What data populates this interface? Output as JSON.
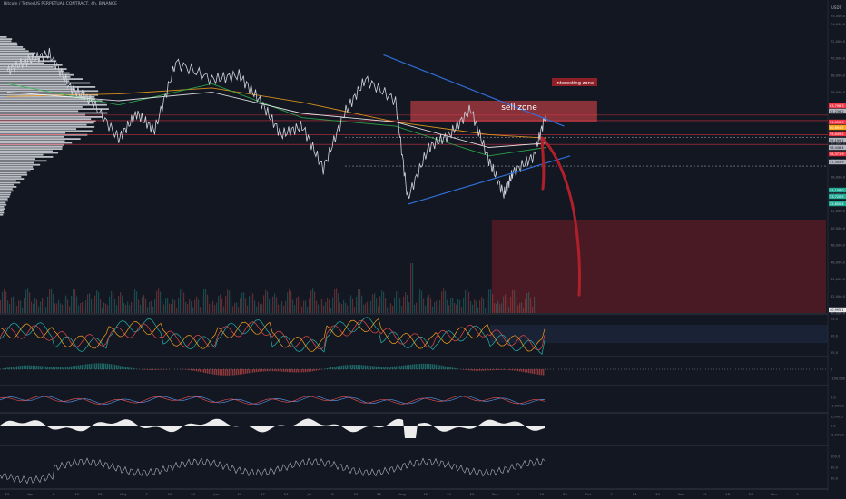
{
  "header": {
    "symbol": "Bitcoin / TetherUS PERPETUAL CONTRACT, 4h, BINANCE"
  },
  "currency_label": "USDT",
  "chart_data": [
    {
      "type": "line",
      "title": "Bitcoin / TetherUS PERPETUAL CONTRACT, 4h, BINANCE",
      "x_axis_ticks": [
        "25",
        "Apr",
        "8",
        "15",
        "22",
        "May",
        "7",
        "13",
        "20",
        "Jun",
        "10",
        "17",
        "24",
        "Jul",
        "8",
        "15",
        "22",
        "Aug",
        "12",
        "19",
        "26",
        "Sep",
        "9",
        "16",
        "23",
        "Oct",
        "7",
        "14",
        "21",
        "Nov",
        "11",
        "18",
        "25",
        "Dec",
        "9"
      ],
      "y_axis_ticks": [
        "75,000.0",
        "74,000.0",
        "72,000.0",
        "70,000.0",
        "68,000.0",
        "66,000.0",
        "64,000.0",
        "62,000.0",
        "60,000.0",
        "58,000.0",
        "56,000.0",
        "54,000.0",
        "52,000.0",
        "50,000.0",
        "48,000.0",
        "46,000.0",
        "44,000.0",
        "42,000.0",
        "40,000.0"
      ],
      "ylim": [
        40000,
        76000
      ],
      "price_series": {
        "name": "BTCUSDT",
        "color": "#d1d4dc",
        "x": [
          "2024-03-25",
          "2024-04-01",
          "2024-04-08",
          "2024-04-15",
          "2024-04-22",
          "2024-05-01",
          "2024-05-07",
          "2024-05-13",
          "2024-05-20",
          "2024-06-01",
          "2024-06-10",
          "2024-06-17",
          "2024-06-24",
          "2024-07-01",
          "2024-07-08",
          "2024-07-15",
          "2024-07-22",
          "2024-08-01",
          "2024-08-05",
          "2024-08-12",
          "2024-08-19",
          "2024-08-26",
          "2024-09-01",
          "2024-09-06",
          "2024-09-09",
          "2024-09-16",
          "2024-09-20"
        ],
        "y": [
          68500,
          69800,
          70500,
          66500,
          65000,
          60500,
          63500,
          61500,
          69500,
          67500,
          68000,
          65000,
          61000,
          62000,
          57000,
          63500,
          67500,
          65000,
          53500,
          59500,
          61000,
          64000,
          58000,
          54000,
          56500,
          58500,
          63500
        ]
      },
      "moving_averages": [
        {
          "color": "#f7a21b",
          "x": [
            "2024-03-25",
            "2024-05-01",
            "2024-06-01",
            "2024-07-01",
            "2024-08-01",
            "2024-09-01",
            "2024-09-20"
          ],
          "y": [
            65500,
            65800,
            66500,
            64800,
            62500,
            61000,
            60600
          ]
        },
        {
          "color": "#2db84d",
          "x": [
            "2024-03-25",
            "2024-05-01",
            "2024-06-01",
            "2024-07-01",
            "2024-08-01",
            "2024-09-01",
            "2024-09-20"
          ],
          "y": [
            67000,
            64500,
            67000,
            63000,
            62000,
            58500,
            59500
          ]
        },
        {
          "color": "#ffffff",
          "x": [
            "2024-03-25",
            "2024-05-01",
            "2024-06-01",
            "2024-07-01",
            "2024-08-01",
            "2024-09-01",
            "2024-09-20"
          ],
          "y": [
            66000,
            65000,
            66000,
            63500,
            62500,
            59500,
            60000
          ]
        }
      ],
      "trendlines": [
        {
          "name": "",
          "color": "#2f6fd8",
          "from": {
            "x": "2024-07-28",
            "y": 70400
          },
          "to": {
            "x": "2024-09-26",
            "y": 62000
          }
        },
        {
          "name": "",
          "color": "#2f6fd8",
          "from": {
            "x": "2024-08-05",
            "y": 52800
          },
          "to": {
            "x": "2024-09-28",
            "y": 58500
          }
        }
      ],
      "zones": [
        {
          "label": "sell zone",
          "color": "#e8494d",
          "x_start": "2024-08-06",
          "x_end": "2024-10-07",
          "y_low": 62500,
          "y_high": 65000
        },
        {
          "label": "",
          "color": "#8f2027",
          "x_start": "2024-09-02",
          "x_end": "2024-12-31",
          "y_low": 40000,
          "y_high": 51000
        }
      ],
      "annotations": [
        {
          "text": "Interesting zone",
          "color": "#8f2027"
        }
      ],
      "price_tags": [
        {
          "text": "63,798.3",
          "color": "#f23645"
        },
        {
          "text": "62,236.2",
          "color": "#b2b5be"
        },
        {
          "text": "61,556.3",
          "color": "#f23645"
        },
        {
          "text": "60,694.5",
          "color": "#f7a21b"
        },
        {
          "text": "59,849.2",
          "color": "#f23645"
        },
        {
          "text": "59,199.1",
          "color": "#b2b5be"
        },
        {
          "text": "58,448.4",
          "color": "#b2b5be"
        },
        {
          "text": "58,371.9",
          "color": "#f23645"
        },
        {
          "text": "57,305.9",
          "color": "#b2b5be"
        },
        {
          "text": "54,158.0",
          "color": "#22ab94"
        },
        {
          "text": "53,720.5",
          "color": "#22ab94"
        },
        {
          "text": "52,650.4",
          "color": "#22ab94"
        },
        {
          "text": "40,995.1",
          "color": "#e8e8e8"
        }
      ],
      "volume_profile": {
        "side": "left",
        "color": "#d9dbe0"
      }
    },
    {
      "type": "line",
      "title": "",
      "y_axis_ticks": [
        "75.0",
        "50.0",
        "25.0"
      ],
      "ylim": [
        20,
        80
      ],
      "series": [
        {
          "color": "#20b2aa",
          "x": [
            0,
            10,
            20,
            30,
            40,
            50,
            60,
            70,
            80,
            90,
            100
          ],
          "y": [
            55,
            42,
            60,
            45,
            58,
            40,
            62,
            44,
            50,
            38,
            58
          ]
        },
        {
          "color": "#e8494d",
          "x": [
            0,
            10,
            20,
            30,
            40,
            50,
            60,
            70,
            80,
            90,
            100
          ],
          "y": [
            50,
            48,
            52,
            47,
            55,
            45,
            58,
            48,
            52,
            44,
            56
          ]
        },
        {
          "color": "#f7a21b",
          "x": [
            0,
            10,
            20,
            30,
            40,
            50,
            60,
            70,
            80,
            90,
            100
          ],
          "y": [
            52,
            46,
            56,
            46,
            56,
            42,
            60,
            46,
            51,
            41,
            57
          ]
        }
      ]
    },
    {
      "type": "bar",
      "title": "",
      "y_axis_ticks": [
        "0",
        "-100,000"
      ],
      "colors": {
        "positive": "#26a69a",
        "negative": "#ef5350"
      }
    },
    {
      "type": "line",
      "title": "",
      "y_axis_ticks": [
        "0.0",
        "-1,000.0"
      ],
      "series": [
        {
          "color": "#5b9cf6",
          "x": [
            0,
            10,
            20,
            30,
            40,
            50,
            60,
            70,
            80,
            90,
            100
          ],
          "y": [
            0.2,
            -0.3,
            0.4,
            -0.2,
            0.3,
            -0.5,
            0.5,
            -0.4,
            0.2,
            -0.4,
            0.3
          ]
        },
        {
          "color": "#ef5350",
          "x": [
            0,
            10,
            20,
            30,
            40,
            50,
            60,
            70,
            80,
            90,
            100
          ],
          "y": [
            0.1,
            -0.2,
            0.3,
            -0.1,
            0.2,
            -0.4,
            0.4,
            -0.3,
            0.1,
            -0.3,
            0.2
          ]
        }
      ]
    },
    {
      "type": "area",
      "title": "",
      "y_axis_ticks": [
        "5,000.0",
        "0.0",
        "-5,000.0"
      ],
      "color": "#ffffff"
    },
    {
      "type": "line",
      "title": "",
      "y_axis_ticks": [
        "100.0",
        "80.0",
        "60.0"
      ],
      "color": "#b2b5be"
    }
  ]
}
